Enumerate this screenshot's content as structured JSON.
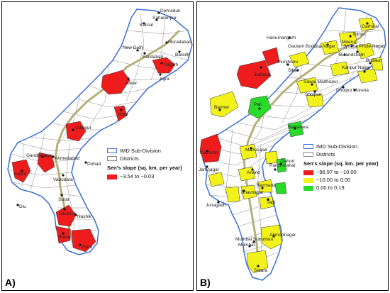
{
  "panels": [
    {
      "label": "A)",
      "legend": {
        "subdivision": "IMD Sub-Division",
        "districts": "Districts",
        "title": "Sen's slope (sq. km. per year)",
        "classes": [
          {
            "label": "−3.54 to −0.03",
            "color": "#ee1c1c"
          }
        ]
      },
      "cities": [
        "Dehradun",
        "Saharanpur",
        "Karnal",
        "Moradabad",
        "New Delhi",
        "Faridabad",
        "Bareilly",
        "Aligarh",
        "Agra",
        "Alwar",
        "Kota",
        "Udaipur",
        "Ahmedabad",
        "Gandhinagar",
        "Rajkot",
        "Vadodara",
        "Dohad",
        "Surat",
        "Diu",
        "Silvassa",
        "Nashik",
        "Thane",
        "Pune"
      ]
    },
    {
      "label": "B)",
      "legend": {
        "subdivision": "IMD Sub-Division",
        "districts": "Districts",
        "title": "Sen's slope (sq. km. per year)",
        "classes": [
          {
            "label": "−96.97 to −10.00",
            "color": "#ee1c1c"
          },
          {
            "label": "−10.00 to 0.00",
            "color": "#f2f21a"
          },
          {
            "label": "0.00 to 0.19",
            "color": "#2adb2a"
          }
        ]
      },
      "cities": [
        "Garhwal",
        "Hanumangarh",
        "Bijnor",
        "Gautam Buddha Nagar",
        "Meerut",
        "Jyotiba Phule Nagar",
        "Bulandshahr",
        "Budaun",
        "Kanpur Nagar",
        "Sikar",
        "Jhunjhunu",
        "Jodhpur",
        "Sawai Madhopur",
        "Shivpuri",
        "Dholpur",
        "Morena",
        "Barmer",
        "Pali",
        "Kachchh",
        "Banswara",
        "Jamnagar",
        "Mahesana",
        "Anand",
        "Panchmahal",
        "Dahod",
        "Narmada",
        "Bhavnagar",
        "Tapi",
        "Junagadh",
        "Mumbai Suburban",
        "Mumbai",
        "Ahmadnagar",
        "Satara"
      ]
    }
  ]
}
